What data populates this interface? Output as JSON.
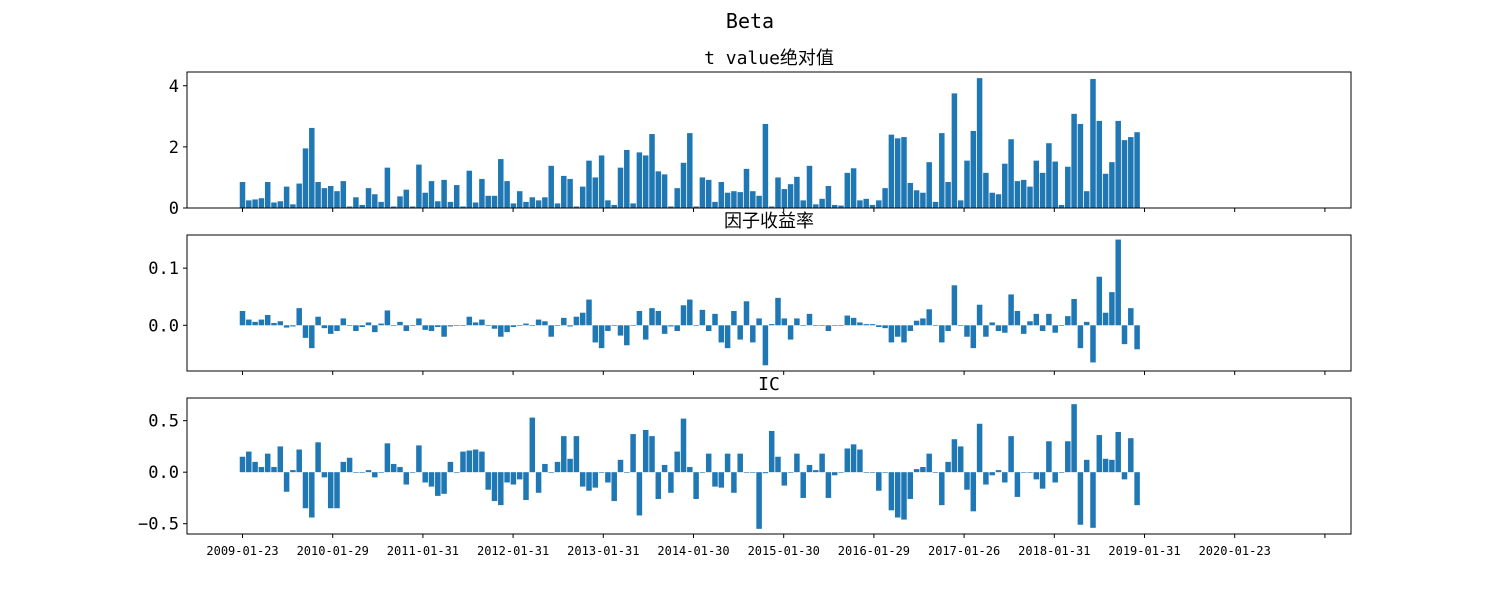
{
  "figure": {
    "suptitle": "Beta",
    "bar_color": "#1f77b4"
  },
  "chart_data": [
    {
      "type": "bar",
      "title": "t value绝对值",
      "ylim": [
        0,
        4.45
      ],
      "yticks": [
        0,
        2,
        4
      ],
      "ytick_labels": [
        "0",
        "2",
        "4"
      ],
      "values": [
        0.85,
        0.25,
        0.28,
        0.32,
        0.85,
        0.18,
        0.22,
        0.7,
        0.12,
        0.8,
        1.95,
        2.62,
        0.85,
        0.65,
        0.72,
        0.55,
        0.88,
        0.05,
        0.35,
        0.1,
        0.65,
        0.45,
        0.2,
        1.32,
        0.05,
        0.38,
        0.6,
        0.05,
        1.42,
        0.5,
        0.88,
        0.22,
        0.92,
        0.2,
        0.75,
        0.05,
        1.22,
        0.18,
        0.95,
        0.4,
        0.4,
        1.6,
        0.88,
        0.15,
        0.55,
        0.2,
        0.35,
        0.25,
        0.35,
        1.38,
        0.15,
        1.05,
        0.95,
        0.05,
        0.7,
        1.55,
        1.0,
        1.72,
        0.25,
        0.1,
        1.32,
        1.9,
        0.15,
        1.82,
        1.72,
        2.42,
        1.2,
        1.1,
        0.05,
        0.65,
        1.48,
        2.45,
        0.05,
        1.0,
        0.92,
        0.2,
        0.85,
        0.5,
        0.55,
        0.52,
        1.28,
        0.55,
        0.4,
        2.75,
        0.05,
        1.0,
        0.62,
        0.78,
        1.02,
        0.25,
        1.38,
        0.12,
        0.3,
        0.72,
        0.1,
        0.08,
        1.15,
        1.3,
        0.25,
        0.3,
        0.1,
        0.25,
        0.65,
        2.4,
        2.28,
        2.32,
        0.82,
        0.58,
        0.5,
        1.5,
        0.2,
        2.45,
        0.85,
        3.75,
        0.25,
        1.55,
        2.52,
        4.25,
        1.15,
        0.5,
        0.45,
        1.45,
        2.25,
        0.88,
        0.92,
        0.7,
        1.55,
        1.15,
        2.12,
        1.52,
        0.1,
        1.35,
        3.08,
        2.75,
        0.55,
        4.22,
        2.85,
        1.12,
        1.5,
        2.85,
        2.22,
        2.32,
        2.48
      ]
    },
    {
      "type": "bar",
      "title": "因子收益率",
      "ylim": [
        -0.08,
        0.158
      ],
      "yticks": [
        0.1,
        0.0
      ],
      "ytick_labels": [
        "0.1",
        "0.0"
      ],
      "values": [
        0.025,
        0.01,
        0.006,
        0.01,
        0.018,
        0.004,
        0.007,
        -0.004,
        -0.002,
        0.03,
        -0.022,
        -0.04,
        0.015,
        -0.005,
        -0.015,
        -0.01,
        0.012,
        0.0,
        -0.01,
        -0.003,
        0.005,
        -0.012,
        0.003,
        0.026,
        0.0,
        0.006,
        -0.01,
        0.0,
        0.012,
        -0.008,
        -0.01,
        -0.003,
        -0.02,
        -0.002,
        0.0,
        0.0,
        0.015,
        0.005,
        0.01,
        0.0,
        -0.006,
        -0.02,
        -0.012,
        -0.003,
        0.0,
        0.003,
        0.0,
        0.01,
        0.007,
        -0.02,
        0.0,
        0.013,
        -0.002,
        0.015,
        0.022,
        0.045,
        -0.03,
        -0.04,
        -0.01,
        0.0,
        -0.018,
        -0.035,
        0.0,
        0.025,
        -0.025,
        0.03,
        0.025,
        -0.015,
        -0.002,
        -0.01,
        0.035,
        0.045,
        0.0,
        0.027,
        -0.01,
        0.02,
        -0.03,
        -0.04,
        0.025,
        -0.025,
        0.042,
        -0.03,
        0.012,
        -0.07,
        0.002,
        0.048,
        0.012,
        -0.025,
        0.012,
        0.0,
        0.02,
        0.0,
        0.0,
        -0.01,
        0.0,
        0.0,
        0.017,
        0.013,
        0.005,
        0.002,
        0.002,
        -0.003,
        -0.005,
        -0.03,
        -0.02,
        -0.03,
        -0.01,
        0.008,
        0.012,
        0.028,
        0.0,
        -0.03,
        -0.01,
        0.07,
        0.0,
        -0.02,
        -0.04,
        0.036,
        -0.02,
        0.005,
        -0.01,
        -0.013,
        0.054,
        0.025,
        -0.015,
        0.007,
        0.02,
        -0.01,
        0.02,
        -0.013,
        0.0,
        0.016,
        0.046,
        -0.04,
        0.006,
        -0.065,
        0.085,
        0.022,
        0.058,
        0.15,
        -0.033,
        0.03,
        -0.042
      ]
    },
    {
      "type": "bar",
      "title": "IC",
      "ylim": [
        -0.6,
        0.72
      ],
      "yticks": [
        0.5,
        0.0,
        -0.5
      ],
      "ytick_labels": [
        "0.5",
        "0.0",
        "−0.5"
      ],
      "values": [
        0.15,
        0.2,
        0.1,
        0.05,
        0.18,
        0.05,
        0.25,
        -0.19,
        0.02,
        0.22,
        -0.35,
        -0.44,
        0.29,
        -0.05,
        -0.35,
        -0.35,
        0.1,
        0.14,
        0.0,
        0.0,
        0.02,
        -0.05,
        0.0,
        0.28,
        0.08,
        0.05,
        -0.12,
        0.0,
        0.26,
        -0.1,
        -0.14,
        -0.23,
        -0.21,
        0.1,
        0.0,
        0.2,
        0.21,
        0.22,
        0.2,
        -0.17,
        -0.28,
        -0.32,
        -0.1,
        -0.12,
        -0.07,
        -0.27,
        0.53,
        -0.2,
        0.08,
        0.0,
        0.1,
        0.35,
        0.13,
        0.35,
        -0.14,
        -0.18,
        -0.15,
        0.0,
        -0.1,
        -0.28,
        0.12,
        0.0,
        0.37,
        -0.42,
        0.41,
        0.35,
        -0.26,
        0.07,
        -0.2,
        0.2,
        0.52,
        0.05,
        -0.26,
        0.0,
        0.18,
        -0.14,
        -0.15,
        0.18,
        -0.2,
        0.18,
        0.0,
        0.0,
        -0.55,
        -0.01,
        0.4,
        0.15,
        -0.13,
        0.0,
        0.18,
        -0.25,
        0.07,
        0.02,
        0.18,
        -0.25,
        -0.03,
        0.0,
        0.23,
        0.27,
        0.22,
        0.0,
        0.0,
        -0.18,
        0.0,
        -0.37,
        -0.44,
        -0.46,
        -0.26,
        0.03,
        0.05,
        0.18,
        0.0,
        -0.32,
        0.1,
        0.32,
        0.25,
        -0.17,
        -0.38,
        0.47,
        -0.12,
        -0.03,
        0.02,
        -0.1,
        0.35,
        -0.24,
        0.0,
        0.0,
        -0.07,
        -0.16,
        0.3,
        -0.1,
        0.0,
        0.3,
        0.66,
        -0.51,
        0.12,
        -0.54,
        0.36,
        0.13,
        0.12,
        0.39,
        -0.07,
        0.33,
        -0.32
      ]
    }
  ],
  "x_axis": {
    "tick_labels": [
      "2009-01-23",
      "2010-01-29",
      "2011-01-31",
      "2012-01-31",
      "2013-01-31",
      "2014-01-30",
      "2015-01-30",
      "2016-01-29",
      "2017-01-26",
      "2018-01-31",
      "2019-01-31",
      "2020-01-23",
      ""
    ]
  }
}
